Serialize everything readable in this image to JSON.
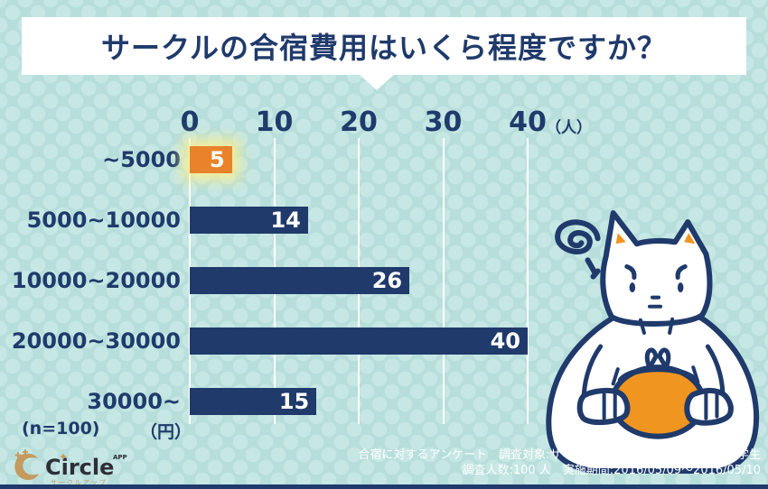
{
  "title": "サークルの合宿費用はいくら程度ですか？",
  "chart_data": {
    "type": "bar",
    "orientation": "horizontal",
    "title": "サークルの合宿費用はいくら程度ですか？",
    "categories": [
      "~5000",
      "5000~10000",
      "10000~20000",
      "20000~30000",
      "30000~"
    ],
    "values": [
      5,
      14,
      26,
      40,
      15
    ],
    "highlight_index": 0,
    "x_ticks": [
      "0",
      "10",
      "20",
      "30",
      "40"
    ],
    "xlim": [
      0,
      40
    ],
    "x_unit": "（人）",
    "y_unit": "（円）",
    "sample_size_label": "(n=100)",
    "grid": true,
    "bar_color": "#1f3a6b",
    "highlight_color": "#e8832b",
    "value_label_color": "#ffffff"
  },
  "axis": {
    "unit_people": "（人）",
    "unit_yen": "（円）",
    "n_label": "(n=100)"
  },
  "footer": {
    "line1": "合宿に対するアンケート　調査対象:サークルアップに加入する全国の大学生",
    "line2": "調査人数:100 人　実施期間:2016/05/09～2016/05/10"
  },
  "logo": {
    "brand": "Circle",
    "superscript": "APP",
    "subtitle": "サークルアップ"
  },
  "colors": {
    "background": "#b7dedb",
    "background_dots": "#c6e7e4",
    "navy": "#1f3a6b",
    "bar_orange": "#e8832b",
    "purse_orange": "#ef9520",
    "glow_yellow": "#f5ee96",
    "banner_white": "#ffffff",
    "logo_gold": "#c49a5f"
  }
}
